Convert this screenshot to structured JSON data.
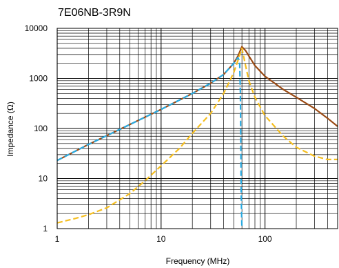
{
  "chart_data": {
    "type": "line",
    "title": "7E06NB-3R9N",
    "xlabel": "Frequency (MHz)",
    "ylabel": "Impedance (Ω)",
    "xscale": "log",
    "yscale": "log",
    "xlim": [
      1,
      500
    ],
    "ylim": [
      1,
      10000
    ],
    "grid": true,
    "x_tick_labels": [
      "1",
      "10",
      "100"
    ],
    "y_tick_labels": [
      "1",
      "10",
      "100",
      "1000",
      "10000"
    ],
    "series": [
      {
        "color": "#9a4a14",
        "style": "solid",
        "x": [
          1,
          2,
          5,
          10,
          20,
          30,
          40,
          50,
          55,
          60,
          65,
          70,
          80,
          100,
          150,
          200,
          300,
          400,
          500
        ],
        "y": [
          23,
          48,
          120,
          240,
          500,
          800,
          1200,
          2000,
          2800,
          4300,
          3600,
          2800,
          1800,
          1100,
          600,
          420,
          250,
          160,
          110
        ]
      },
      {
        "color": "#29abe2",
        "style": "dashed",
        "x": [
          1,
          2,
          5,
          10,
          20,
          30,
          40,
          50,
          55,
          57,
          58,
          59,
          60
        ],
        "y": [
          23,
          48,
          120,
          240,
          500,
          800,
          1200,
          2000,
          2600,
          2200,
          500,
          5,
          1
        ]
      },
      {
        "color": "#f5be1e",
        "style": "dashed",
        "x": [
          1,
          1.5,
          2,
          3,
          5,
          7,
          10,
          15,
          20,
          30,
          40,
          50,
          55,
          60,
          65,
          70,
          80,
          100,
          150,
          200,
          300,
          400,
          500
        ],
        "y": [
          1.3,
          1.6,
          1.9,
          2.6,
          5,
          9,
          18,
          40,
          80,
          200,
          500,
          1300,
          2300,
          4000,
          1800,
          900,
          420,
          180,
          70,
          42,
          28,
          24,
          24
        ]
      }
    ]
  }
}
